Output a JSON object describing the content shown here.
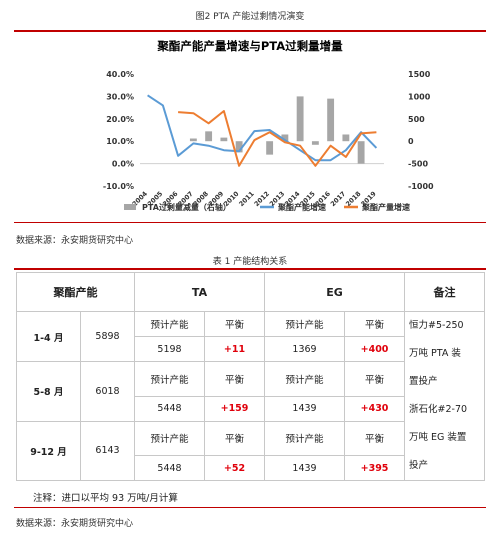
{
  "figure": {
    "caption": "图2  PTA 产能过剩情况演变"
  },
  "chart_data": {
    "type": "bar+line",
    "title": "聚酯产能产量增速与PTA过剩量增量",
    "categories": [
      "2004",
      "2005",
      "2006",
      "2007",
      "2008",
      "2009",
      "2010",
      "2011",
      "2012",
      "2013",
      "2014",
      "2015",
      "2016",
      "2017",
      "2018",
      "2019"
    ],
    "left_axis": {
      "ticks": [
        "40.0%",
        "30.0%",
        "20.0%",
        "10.0%",
        "0.0%",
        "-10.0%"
      ],
      "ylim": [
        -10,
        40
      ]
    },
    "right_axis": {
      "ticks": [
        "1500",
        "1000",
        "500",
        "0",
        "-500",
        "-1000"
      ],
      "ylim": [
        -1000,
        1500
      ]
    },
    "series": [
      {
        "name": "PTA过剩量减量（右轴）",
        "kind": "bar",
        "axis": "right",
        "color": "#a6a6a6",
        "values": [
          0,
          0,
          0,
          60,
          220,
          80,
          -250,
          0,
          -300,
          150,
          1000,
          -80,
          950,
          150,
          -500,
          0
        ]
      },
      {
        "name": "聚酯产能增速",
        "kind": "line",
        "axis": "left",
        "color": "#5b9bd5",
        "values": [
          30.5,
          26,
          3.5,
          9,
          8,
          6,
          5.5,
          14.5,
          15,
          10.5,
          6,
          1.5,
          1.5,
          6,
          14,
          7
        ]
      },
      {
        "name": "聚酯产量增速",
        "kind": "line",
        "axis": "left",
        "color": "#ed7d31",
        "values": [
          null,
          null,
          23,
          22.5,
          18,
          23.5,
          -1,
          10.5,
          14,
          9.5,
          8,
          -1,
          8,
          3,
          13.5,
          14
        ]
      }
    ],
    "legend_position": "bottom"
  },
  "sources": {
    "top": "数据来源：永安期货研究中心",
    "bottom": "数据来源：永安期货研究中心"
  },
  "table": {
    "caption": "表 1   产能结构关系",
    "headers": {
      "poly": "聚酯产能",
      "ta": "TA",
      "eg": "EG",
      "note": "备注"
    },
    "sub": {
      "planned": "预计产能",
      "balance": "平衡"
    },
    "rows": [
      {
        "period": "1-4 月",
        "poly": "5898",
        "ta_cap": "5198",
        "ta_bal": "+11",
        "eg_cap": "1369",
        "eg_bal": "+400"
      },
      {
        "period": "5-8 月",
        "poly": "6018",
        "ta_cap": "5448",
        "ta_bal": "+159",
        "eg_cap": "1439",
        "eg_bal": "+430"
      },
      {
        "period": "9-12 月",
        "poly": "6143",
        "ta_cap": "5448",
        "ta_bal": "+52",
        "eg_cap": "1439",
        "eg_bal": "+395"
      }
    ],
    "note_lines": [
      "恒力#5-250",
      "万吨 PTA 装",
      "置投产",
      "浙石化#2-70",
      "万吨 EG 装置",
      "投产"
    ],
    "footnote": "注释：进口以平均 93 万吨/月计算"
  }
}
